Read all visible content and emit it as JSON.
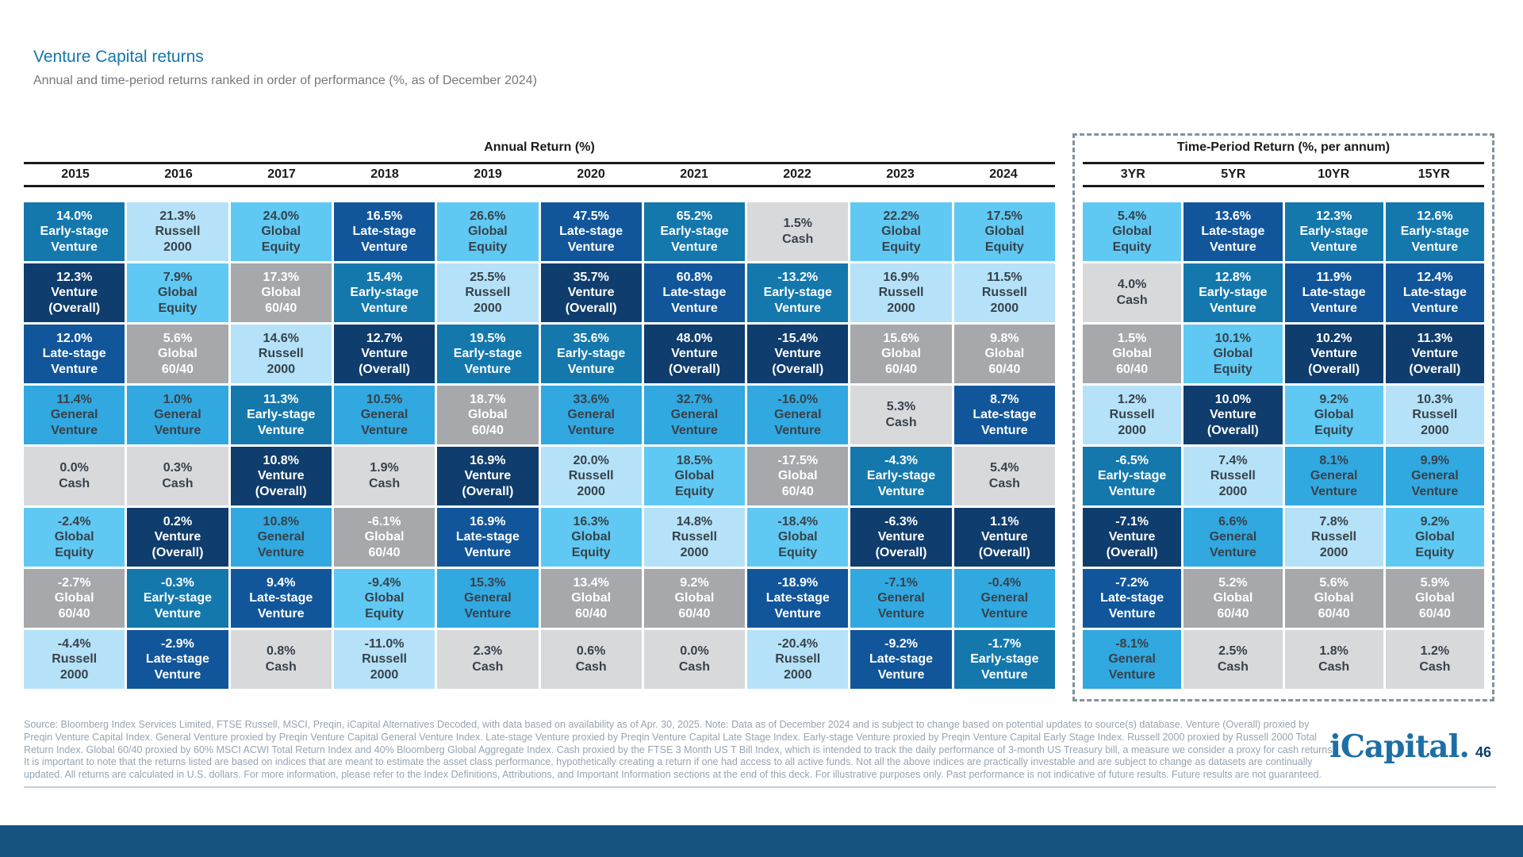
{
  "page": {
    "title": "Venture Capital returns",
    "subtitle": "Annual and time-period returns ranked in order of performance (%, as of December 2024)",
    "logo_text": "iCapital.",
    "page_number": "46",
    "footnote": "Source: Bloomberg Index Services Limited, FTSE Russell, MSCI, Preqin, iCapital Alternatives Decoded, with data based on availability as of Apr. 30, 2025. Note: Data as of December 2024 and is subject to change based on potential updates to source(s) database. Venture (Overall) proxied by Preqin Venture Capital Index. General Venture proxied by Preqin Venture Capital General Venture Index. Late-stage Venture proxied by Preqin Venture Capital Late Stage Index. Early-stage Venture proxied by Preqin Venture Capital Early Stage Index. Russell 2000 proxied by Russell 2000 Total Return Index. Global 60/40 proxied by 60% MSCI ACWI Total Return Index and 40% Bloomberg Global Aggregate Index. Cash proxied by the FTSE 3 Month US T Bill Index, which is intended to track the daily performance of 3-month US Treasury bill, a measure we consider a proxy for cash returns. It is important to note that the returns listed are based on indices that are meant to estimate the asset class performance, hypothetically creating a return if one had access to all active funds. Not all the above indices are practically investable and are subject to change as datasets are continually updated. All returns are calculated in U.S. dollars. For more information, please refer to the Index Definitions, Attributions, and Important Information sections at the end of this deck. For illustrative purposes only. Past performance is not indicative of future results. Future results are not guaranteed."
  },
  "chart_data": {
    "type": "table",
    "title": "Venture Capital returns",
    "subtitle": "Annual and time-period returns ranked in order of performance (%, as of December 2024)",
    "categories": {
      "early": {
        "label": "Early-stage\nVenture",
        "bg": "#1478ad",
        "fg": "#ffffff"
      },
      "late": {
        "label": "Late-stage\nVenture",
        "bg": "#11569b",
        "fg": "#ffffff"
      },
      "overall": {
        "label": "Venture\n(Overall)",
        "bg": "#0f3d6d",
        "fg": "#ffffff"
      },
      "general": {
        "label": "General\nVenture",
        "bg": "#31a8e0",
        "fg": "#37424b"
      },
      "equity": {
        "label": "Global\nEquity",
        "bg": "#5fc9f3",
        "fg": "#37424b"
      },
      "russell": {
        "label": "Russell\n2000",
        "bg": "#b5e2f8",
        "fg": "#37424b"
      },
      "g6040": {
        "label": "Global\n60/40",
        "bg": "#a6a8ab",
        "fg": "#ffffff"
      },
      "cash": {
        "label": "Cash",
        "bg": "#d8d9db",
        "fg": "#37424b"
      }
    },
    "tables": [
      {
        "id": "annual",
        "header": "Annual Return (%)",
        "columns": [
          {
            "label": "2015",
            "cells": [
              {
                "v": "14.0%",
                "c": "early"
              },
              {
                "v": "12.3%",
                "c": "overall"
              },
              {
                "v": "12.0%",
                "c": "late"
              },
              {
                "v": "11.4%",
                "c": "general"
              },
              {
                "v": "0.0%",
                "c": "cash"
              },
              {
                "v": "-2.4%",
                "c": "equity"
              },
              {
                "v": "-2.7%",
                "c": "g6040"
              },
              {
                "v": "-4.4%",
                "c": "russell"
              }
            ]
          },
          {
            "label": "2016",
            "cells": [
              {
                "v": "21.3%",
                "c": "russell"
              },
              {
                "v": "7.9%",
                "c": "equity"
              },
              {
                "v": "5.6%",
                "c": "g6040"
              },
              {
                "v": "1.0%",
                "c": "general"
              },
              {
                "v": "0.3%",
                "c": "cash"
              },
              {
                "v": "0.2%",
                "c": "overall"
              },
              {
                "v": "-0.3%",
                "c": "early"
              },
              {
                "v": "-2.9%",
                "c": "late"
              }
            ]
          },
          {
            "label": "2017",
            "cells": [
              {
                "v": "24.0%",
                "c": "equity"
              },
              {
                "v": "17.3%",
                "c": "g6040"
              },
              {
                "v": "14.6%",
                "c": "russell"
              },
              {
                "v": "11.3%",
                "c": "early"
              },
              {
                "v": "10.8%",
                "c": "overall"
              },
              {
                "v": "10.8%",
                "c": "general"
              },
              {
                "v": "9.4%",
                "c": "late"
              },
              {
                "v": "0.8%",
                "c": "cash"
              }
            ]
          },
          {
            "label": "2018",
            "cells": [
              {
                "v": "16.5%",
                "c": "late"
              },
              {
                "v": "15.4%",
                "c": "early"
              },
              {
                "v": "12.7%",
                "c": "overall"
              },
              {
                "v": "10.5%",
                "c": "general"
              },
              {
                "v": "1.9%",
                "c": "cash"
              },
              {
                "v": "-6.1%",
                "c": "g6040"
              },
              {
                "v": "-9.4%",
                "c": "equity"
              },
              {
                "v": "-11.0%",
                "c": "russell"
              }
            ]
          },
          {
            "label": "2019",
            "cells": [
              {
                "v": "26.6%",
                "c": "equity"
              },
              {
                "v": "25.5%",
                "c": "russell"
              },
              {
                "v": "19.5%",
                "c": "early"
              },
              {
                "v": "18.7%",
                "c": "g6040"
              },
              {
                "v": "16.9%",
                "c": "overall"
              },
              {
                "v": "16.9%",
                "c": "late"
              },
              {
                "v": "15.3%",
                "c": "general"
              },
              {
                "v": "2.3%",
                "c": "cash"
              }
            ]
          },
          {
            "label": "2020",
            "cells": [
              {
                "v": "47.5%",
                "c": "late"
              },
              {
                "v": "35.7%",
                "c": "overall"
              },
              {
                "v": "35.6%",
                "c": "early"
              },
              {
                "v": "33.6%",
                "c": "general"
              },
              {
                "v": "20.0%",
                "c": "russell"
              },
              {
                "v": "16.3%",
                "c": "equity"
              },
              {
                "v": "13.4%",
                "c": "g6040"
              },
              {
                "v": "0.6%",
                "c": "cash"
              }
            ]
          },
          {
            "label": "2021",
            "cells": [
              {
                "v": "65.2%",
                "c": "early"
              },
              {
                "v": "60.8%",
                "c": "late"
              },
              {
                "v": "48.0%",
                "c": "overall"
              },
              {
                "v": "32.7%",
                "c": "general"
              },
              {
                "v": "18.5%",
                "c": "equity"
              },
              {
                "v": "14.8%",
                "c": "russell"
              },
              {
                "v": "9.2%",
                "c": "g6040"
              },
              {
                "v": "0.0%",
                "c": "cash"
              }
            ]
          },
          {
            "label": "2022",
            "cells": [
              {
                "v": "1.5%",
                "c": "cash"
              },
              {
                "v": "-13.2%",
                "c": "early"
              },
              {
                "v": "-15.4%",
                "c": "overall"
              },
              {
                "v": "-16.0%",
                "c": "general"
              },
              {
                "v": "-17.5%",
                "c": "g6040"
              },
              {
                "v": "-18.4%",
                "c": "equity"
              },
              {
                "v": "-18.9%",
                "c": "late"
              },
              {
                "v": "-20.4%",
                "c": "russell"
              }
            ]
          },
          {
            "label": "2023",
            "cells": [
              {
                "v": "22.2%",
                "c": "equity"
              },
              {
                "v": "16.9%",
                "c": "russell"
              },
              {
                "v": "15.6%",
                "c": "g6040"
              },
              {
                "v": "5.3%",
                "c": "cash"
              },
              {
                "v": "-4.3%",
                "c": "early"
              },
              {
                "v": "-6.3%",
                "c": "overall"
              },
              {
                "v": "-7.1%",
                "c": "general"
              },
              {
                "v": "-9.2%",
                "c": "late"
              }
            ]
          },
          {
            "label": "2024",
            "cells": [
              {
                "v": "17.5%",
                "c": "equity"
              },
              {
                "v": "11.5%",
                "c": "russell"
              },
              {
                "v": "9.8%",
                "c": "g6040"
              },
              {
                "v": "8.7%",
                "c": "late"
              },
              {
                "v": "5.4%",
                "c": "cash"
              },
              {
                "v": "1.1%",
                "c": "overall"
              },
              {
                "v": "-0.4%",
                "c": "general"
              },
              {
                "v": "-1.7%",
                "c": "early"
              }
            ]
          }
        ]
      },
      {
        "id": "period",
        "header": "Time-Period Return (%, per annum)",
        "columns": [
          {
            "label": "3YR",
            "cells": [
              {
                "v": "5.4%",
                "c": "equity"
              },
              {
                "v": "4.0%",
                "c": "cash"
              },
              {
                "v": "1.5%",
                "c": "g6040"
              },
              {
                "v": "1.2%",
                "c": "russell"
              },
              {
                "v": "-6.5%",
                "c": "early"
              },
              {
                "v": "-7.1%",
                "c": "overall"
              },
              {
                "v": "-7.2%",
                "c": "late"
              },
              {
                "v": "-8.1%",
                "c": "general"
              }
            ]
          },
          {
            "label": "5YR",
            "cells": [
              {
                "v": "13.6%",
                "c": "late"
              },
              {
                "v": "12.8%",
                "c": "early"
              },
              {
                "v": "10.1%",
                "c": "equity"
              },
              {
                "v": "10.0%",
                "c": "overall"
              },
              {
                "v": "7.4%",
                "c": "russell"
              },
              {
                "v": "6.6%",
                "c": "general"
              },
              {
                "v": "5.2%",
                "c": "g6040"
              },
              {
                "v": "2.5%",
                "c": "cash"
              }
            ]
          },
          {
            "label": "10YR",
            "cells": [
              {
                "v": "12.3%",
                "c": "early"
              },
              {
                "v": "11.9%",
                "c": "late"
              },
              {
                "v": "10.2%",
                "c": "overall"
              },
              {
                "v": "9.2%",
                "c": "equity"
              },
              {
                "v": "8.1%",
                "c": "general"
              },
              {
                "v": "7.8%",
                "c": "russell"
              },
              {
                "v": "5.6%",
                "c": "g6040"
              },
              {
                "v": "1.8%",
                "c": "cash"
              }
            ]
          },
          {
            "label": "15YR",
            "cells": [
              {
                "v": "12.6%",
                "c": "early"
              },
              {
                "v": "12.4%",
                "c": "late"
              },
              {
                "v": "11.3%",
                "c": "overall"
              },
              {
                "v": "10.3%",
                "c": "russell"
              },
              {
                "v": "9.9%",
                "c": "general"
              },
              {
                "v": "9.2%",
                "c": "equity"
              },
              {
                "v": "5.9%",
                "c": "g6040"
              },
              {
                "v": "1.2%",
                "c": "cash"
              }
            ]
          }
        ]
      }
    ]
  }
}
